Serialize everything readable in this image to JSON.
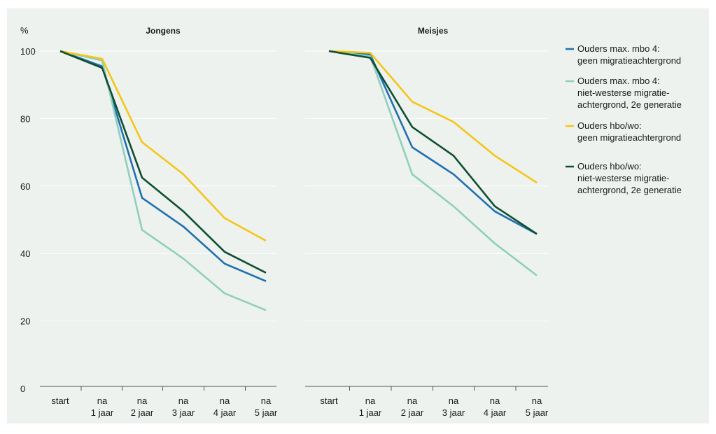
{
  "colors": {
    "background": "#edf2ee",
    "grid": "#ffffff",
    "axis": "#555555"
  },
  "chart_data": [
    {
      "type": "line",
      "title": "Jongens",
      "ylabel": "%",
      "ylim": [
        0,
        100
      ],
      "yticks": [
        "0",
        "20",
        "40",
        "60",
        "80",
        "100"
      ],
      "categories": [
        [
          "start"
        ],
        [
          "na",
          "1 jaar"
        ],
        [
          "na",
          "2 jaar"
        ],
        [
          "na",
          "3 jaar"
        ],
        [
          "na",
          "4 jaar"
        ],
        [
          "na",
          "5 jaar"
        ]
      ],
      "series": [
        {
          "name": "Ouders max. mbo 4: geen migratieachtergrond",
          "color": "#1f6fb2",
          "values": [
            100,
            95.5,
            56.5,
            48,
            37,
            31.8
          ]
        },
        {
          "name": "Ouders max. mbo 4: niet-westerse migratie-achtergrond, 2e generatie",
          "color": "#8fcfbf",
          "values": [
            100,
            97.2,
            47,
            38.5,
            28.2,
            23.2
          ]
        },
        {
          "name": "Ouders hbo/wo: geen migratieachtergrond",
          "color": "#f5c518",
          "values": [
            100,
            97.7,
            73,
            63.5,
            50.5,
            43.8
          ]
        },
        {
          "name": "Ouders hbo/wo: niet-westerse migratie-achtergrond, 2e generatie",
          "color": "#0f4f30",
          "values": [
            100,
            95,
            62.5,
            52.5,
            40.5,
            34.3
          ]
        }
      ]
    },
    {
      "type": "line",
      "title": "Meisjes",
      "ylim": [
        0,
        100
      ],
      "categories": [
        [
          "start"
        ],
        [
          "na",
          "1 jaar"
        ],
        [
          "na",
          "2 jaar"
        ],
        [
          "na",
          "3 jaar"
        ],
        [
          "na",
          "4 jaar"
        ],
        [
          "na",
          "5 jaar"
        ]
      ],
      "series": [
        {
          "name": "Ouders max. mbo 4: geen migratieachtergrond",
          "color": "#1f6fb2",
          "values": [
            100,
            99,
            71.5,
            63.5,
            52.5,
            45.8
          ]
        },
        {
          "name": "Ouders max. mbo 4: niet-westerse migratie-achtergrond, 2e generatie",
          "color": "#8fcfbf",
          "values": [
            100,
            98.5,
            63.5,
            54,
            43,
            33.5
          ]
        },
        {
          "name": "Ouders hbo/wo: geen migratieachtergrond",
          "color": "#f5c518",
          "values": [
            100,
            99.5,
            85,
            79,
            69,
            61
          ]
        },
        {
          "name": "Ouders hbo/wo: niet-westerse migratie-achtergrond, 2e generatie",
          "color": "#0f4f30",
          "values": [
            100,
            98,
            77.5,
            69,
            54,
            45.8
          ]
        }
      ]
    }
  ],
  "legend": [
    {
      "lines": [
        "Ouders max. mbo 4:",
        "geen migratieachtergrond"
      ],
      "color": "#1f6fb2"
    },
    {
      "lines": [
        "Ouders max. mbo 4:",
        "niet-westerse migratie-",
        "achtergrond, 2e generatie"
      ],
      "color": "#8fcfbf"
    },
    {
      "lines": [
        "Ouders hbo/wo:",
        "geen migratieachtergrond"
      ],
      "color": "#f5c518"
    },
    {
      "lines": [
        "Ouders hbo/wo:",
        "niet-westerse migratie-",
        "achtergrond, 2e generatie"
      ],
      "color": "#0f4f30"
    }
  ]
}
